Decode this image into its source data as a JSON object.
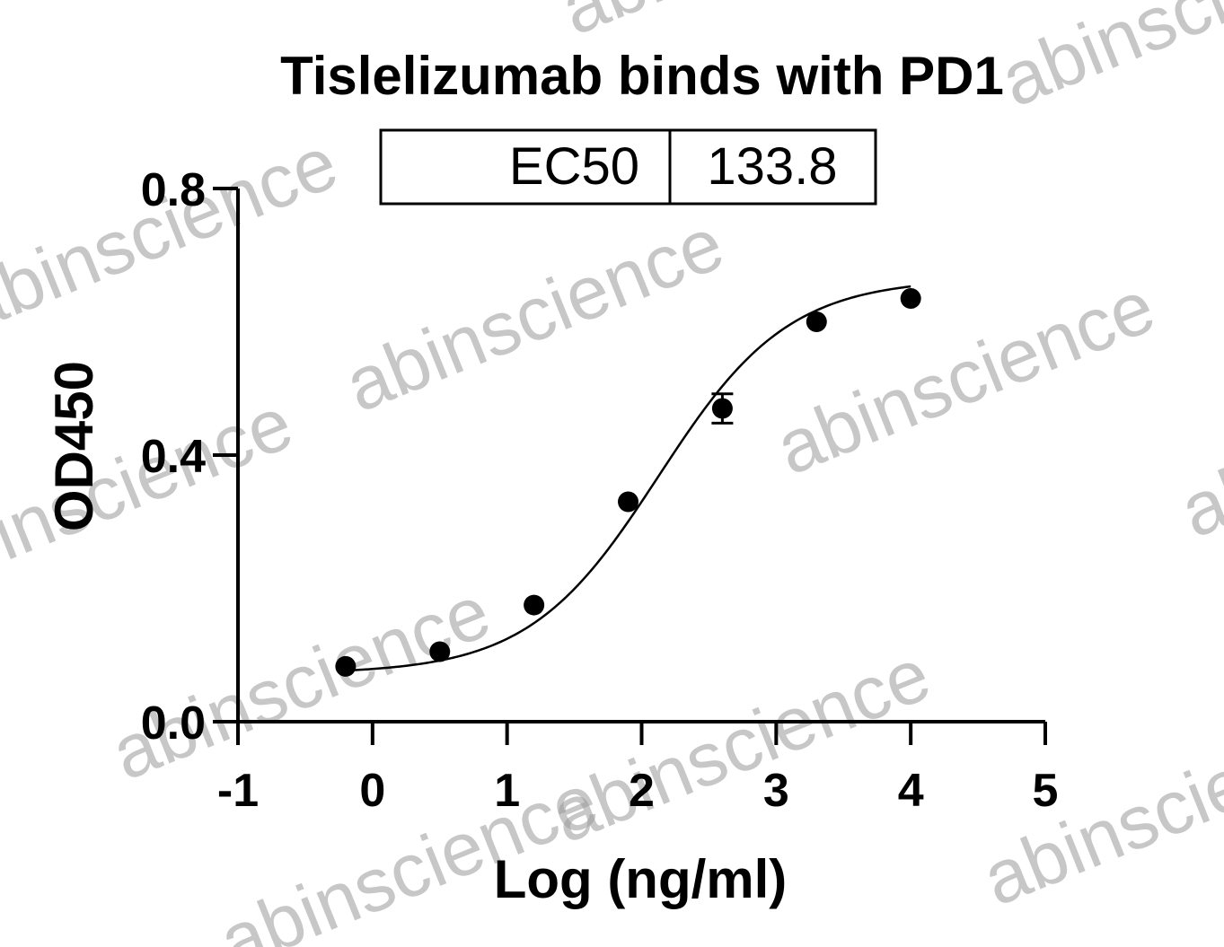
{
  "chart_data": {
    "type": "scatter",
    "title": "Tislelizumab binds with PD1",
    "xlabel": "Log (ng/ml)",
    "ylabel": "OD450",
    "xlim": [
      -1,
      5
    ],
    "ylim": [
      0,
      0.8
    ],
    "x_ticks": [
      -1,
      0,
      1,
      2,
      3,
      4,
      5
    ],
    "y_ticks": [
      "0.0",
      "0.4",
      "0.8"
    ],
    "series": [
      {
        "points": [
          {
            "x": -0.2,
            "y": 0.083,
            "err": 0
          },
          {
            "x": 0.5,
            "y": 0.105,
            "err": 0
          },
          {
            "x": 1.2,
            "y": 0.175,
            "err": 0
          },
          {
            "x": 1.9,
            "y": 0.33,
            "err": 0
          },
          {
            "x": 2.6,
            "y": 0.47,
            "err": 0.022
          },
          {
            "x": 3.3,
            "y": 0.6,
            "err": 0
          },
          {
            "x": 4.0,
            "y": 0.635,
            "err": 0
          }
        ],
        "curve": {
          "bottom": 0.072,
          "top": 0.665,
          "logEC50": 2.126,
          "hill": 0.9
        }
      }
    ],
    "annotation_table": {
      "label": "EC50",
      "value": "133.8"
    },
    "grid": false,
    "watermark_text": "abinscience"
  }
}
